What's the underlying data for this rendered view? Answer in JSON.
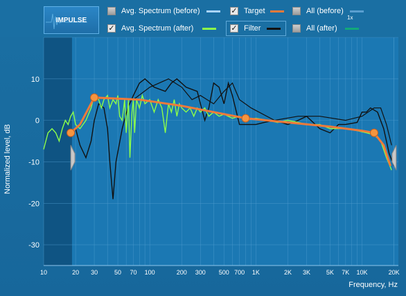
{
  "toolbar": {
    "impulse_label": "IMPULSE",
    "legend": [
      {
        "key": "avg_before",
        "label": "Avg. Spectrum (before)",
        "checked": false,
        "color": "#a9d4ff"
      },
      {
        "key": "target",
        "label": "Target",
        "checked": true,
        "color": "#f07a3a"
      },
      {
        "key": "all_before",
        "label": "All (before)",
        "checked": false,
        "color": "#5a9fd0"
      },
      {
        "key": "avg_after",
        "label": "Avg. Spectrum (after)",
        "checked": true,
        "color": "#8dff4a"
      },
      {
        "key": "filter",
        "label": "Filter",
        "checked": true,
        "color": "#111111"
      },
      {
        "key": "all_after",
        "label": "All (after)",
        "checked": false,
        "color": "#12a97a"
      }
    ],
    "all_before_tag": "1x"
  },
  "axes": {
    "ylabel": "Normalized level, dB",
    "xlabel": "Frequency, Hz",
    "yticks": [
      "10",
      "0",
      "-10",
      "-20",
      "-30"
    ],
    "xticks": [
      "10",
      "20",
      "30",
      "50",
      "70",
      "100",
      "200",
      "300",
      "500",
      "700",
      "1K",
      "2K",
      "3K",
      "5K",
      "7K",
      "10K",
      "20K"
    ]
  },
  "chart_data": {
    "type": "line",
    "x_scale": "log",
    "xlim": [
      10,
      22000
    ],
    "ylim": [
      -35,
      20
    ],
    "grid": true,
    "target_nodes": [
      {
        "x": 18,
        "y": -3
      },
      {
        "x": 30,
        "y": 5.5
      },
      {
        "x": 800,
        "y": 0.5
      },
      {
        "x": 13000,
        "y": -3
      }
    ],
    "target_curve": [
      [
        18,
        -3
      ],
      [
        22,
        -1
      ],
      [
        30,
        5.5
      ],
      [
        80,
        5
      ],
      [
        200,
        3.5
      ],
      [
        400,
        2
      ],
      [
        800,
        0.5
      ],
      [
        2000,
        -0.5
      ],
      [
        5000,
        -1.5
      ],
      [
        10000,
        -2.5
      ],
      [
        13000,
        -3
      ],
      [
        16000,
        -6
      ],
      [
        18500,
        -11
      ]
    ],
    "filter_curve": [
      [
        20,
        -2
      ],
      [
        22,
        -6
      ],
      [
        25,
        -9
      ],
      [
        28,
        -5
      ],
      [
        30,
        0
      ],
      [
        33,
        4
      ],
      [
        37,
        3
      ],
      [
        40,
        -2
      ],
      [
        42,
        -10
      ],
      [
        45,
        -19
      ],
      [
        48,
        -10
      ],
      [
        55,
        -2
      ],
      [
        62,
        3
      ],
      [
        70,
        6
      ],
      [
        80,
        9
      ],
      [
        90,
        10
      ],
      [
        110,
        8
      ],
      [
        140,
        7
      ],
      [
        160,
        9
      ],
      [
        180,
        10
      ],
      [
        220,
        8
      ],
      [
        280,
        7
      ],
      [
        300,
        4
      ],
      [
        330,
        0
      ],
      [
        360,
        3
      ],
      [
        400,
        9
      ],
      [
        450,
        8
      ],
      [
        500,
        4
      ],
      [
        550,
        9
      ],
      [
        600,
        6
      ],
      [
        700,
        -1
      ],
      [
        850,
        -1
      ],
      [
        1000,
        -1
      ],
      [
        1200,
        -0.5
      ],
      [
        1500,
        0
      ],
      [
        2000,
        -1
      ],
      [
        2500,
        0
      ],
      [
        3000,
        1
      ],
      [
        4000,
        -2
      ],
      [
        5000,
        -3
      ],
      [
        6000,
        -1
      ],
      [
        7000,
        -1
      ],
      [
        9000,
        -0.5
      ],
      [
        10000,
        2
      ],
      [
        11000,
        2
      ],
      [
        12000,
        3
      ],
      [
        14000,
        2
      ],
      [
        16000,
        -2
      ],
      [
        18000,
        -8
      ],
      [
        20000,
        -11
      ]
    ],
    "filter_curve_2": [
      [
        70,
        5
      ],
      [
        100,
        8
      ],
      [
        150,
        10
      ],
      [
        200,
        8
      ],
      [
        250,
        5
      ],
      [
        300,
        6
      ],
      [
        400,
        4
      ],
      [
        500,
        7
      ],
      [
        600,
        9
      ],
      [
        700,
        5
      ],
      [
        900,
        3
      ],
      [
        1500,
        0
      ],
      [
        2500,
        1
      ],
      [
        4000,
        1
      ],
      [
        7000,
        0
      ],
      [
        10000,
        1
      ],
      [
        13000,
        3
      ],
      [
        15000,
        3
      ],
      [
        17000,
        -1
      ],
      [
        19000,
        -6
      ]
    ],
    "avg_after_curve": [
      [
        10,
        -7
      ],
      [
        11,
        -3
      ],
      [
        12,
        -2
      ],
      [
        13,
        -3
      ],
      [
        14,
        -5
      ],
      [
        15,
        -2
      ],
      [
        16,
        0
      ],
      [
        17,
        -1
      ],
      [
        18,
        1
      ],
      [
        19,
        2
      ],
      [
        20,
        -1
      ],
      [
        22,
        -2
      ],
      [
        25,
        0
      ],
      [
        28,
        3
      ],
      [
        30,
        6
      ],
      [
        33,
        5
      ],
      [
        35,
        3
      ],
      [
        37,
        5
      ],
      [
        40,
        6
      ],
      [
        42,
        3
      ],
      [
        45,
        5
      ],
      [
        48,
        4
      ],
      [
        50,
        6
      ],
      [
        52,
        1
      ],
      [
        55,
        0
      ],
      [
        58,
        5
      ],
      [
        60,
        -3
      ],
      [
        63,
        5
      ],
      [
        65,
        -9
      ],
      [
        68,
        2
      ],
      [
        70,
        5
      ],
      [
        72,
        -3
      ],
      [
        75,
        5
      ],
      [
        80,
        3
      ],
      [
        85,
        6
      ],
      [
        90,
        4
      ],
      [
        100,
        5
      ],
      [
        110,
        2
      ],
      [
        120,
        5
      ],
      [
        130,
        3
      ],
      [
        140,
        -3
      ],
      [
        150,
        4
      ],
      [
        160,
        2
      ],
      [
        170,
        5
      ],
      [
        180,
        1
      ],
      [
        190,
        4
      ],
      [
        200,
        3
      ],
      [
        220,
        2
      ],
      [
        240,
        3
      ],
      [
        260,
        1
      ],
      [
        280,
        3
      ],
      [
        300,
        2
      ],
      [
        330,
        3
      ],
      [
        360,
        1
      ],
      [
        400,
        2
      ],
      [
        450,
        1
      ],
      [
        500,
        1.5
      ],
      [
        600,
        0.5
      ],
      [
        700,
        1
      ],
      [
        800,
        0
      ],
      [
        1000,
        0.5
      ],
      [
        1300,
        0
      ],
      [
        1600,
        -0.5
      ],
      [
        2000,
        0
      ],
      [
        2500,
        -0.5
      ],
      [
        3000,
        -1
      ],
      [
        4000,
        -1
      ],
      [
        5000,
        -2
      ],
      [
        7000,
        -2
      ],
      [
        9000,
        -2.5
      ],
      [
        11000,
        -3
      ],
      [
        13000,
        -3.5
      ],
      [
        15000,
        -5
      ],
      [
        17000,
        -9
      ],
      [
        19000,
        -12
      ]
    ]
  }
}
